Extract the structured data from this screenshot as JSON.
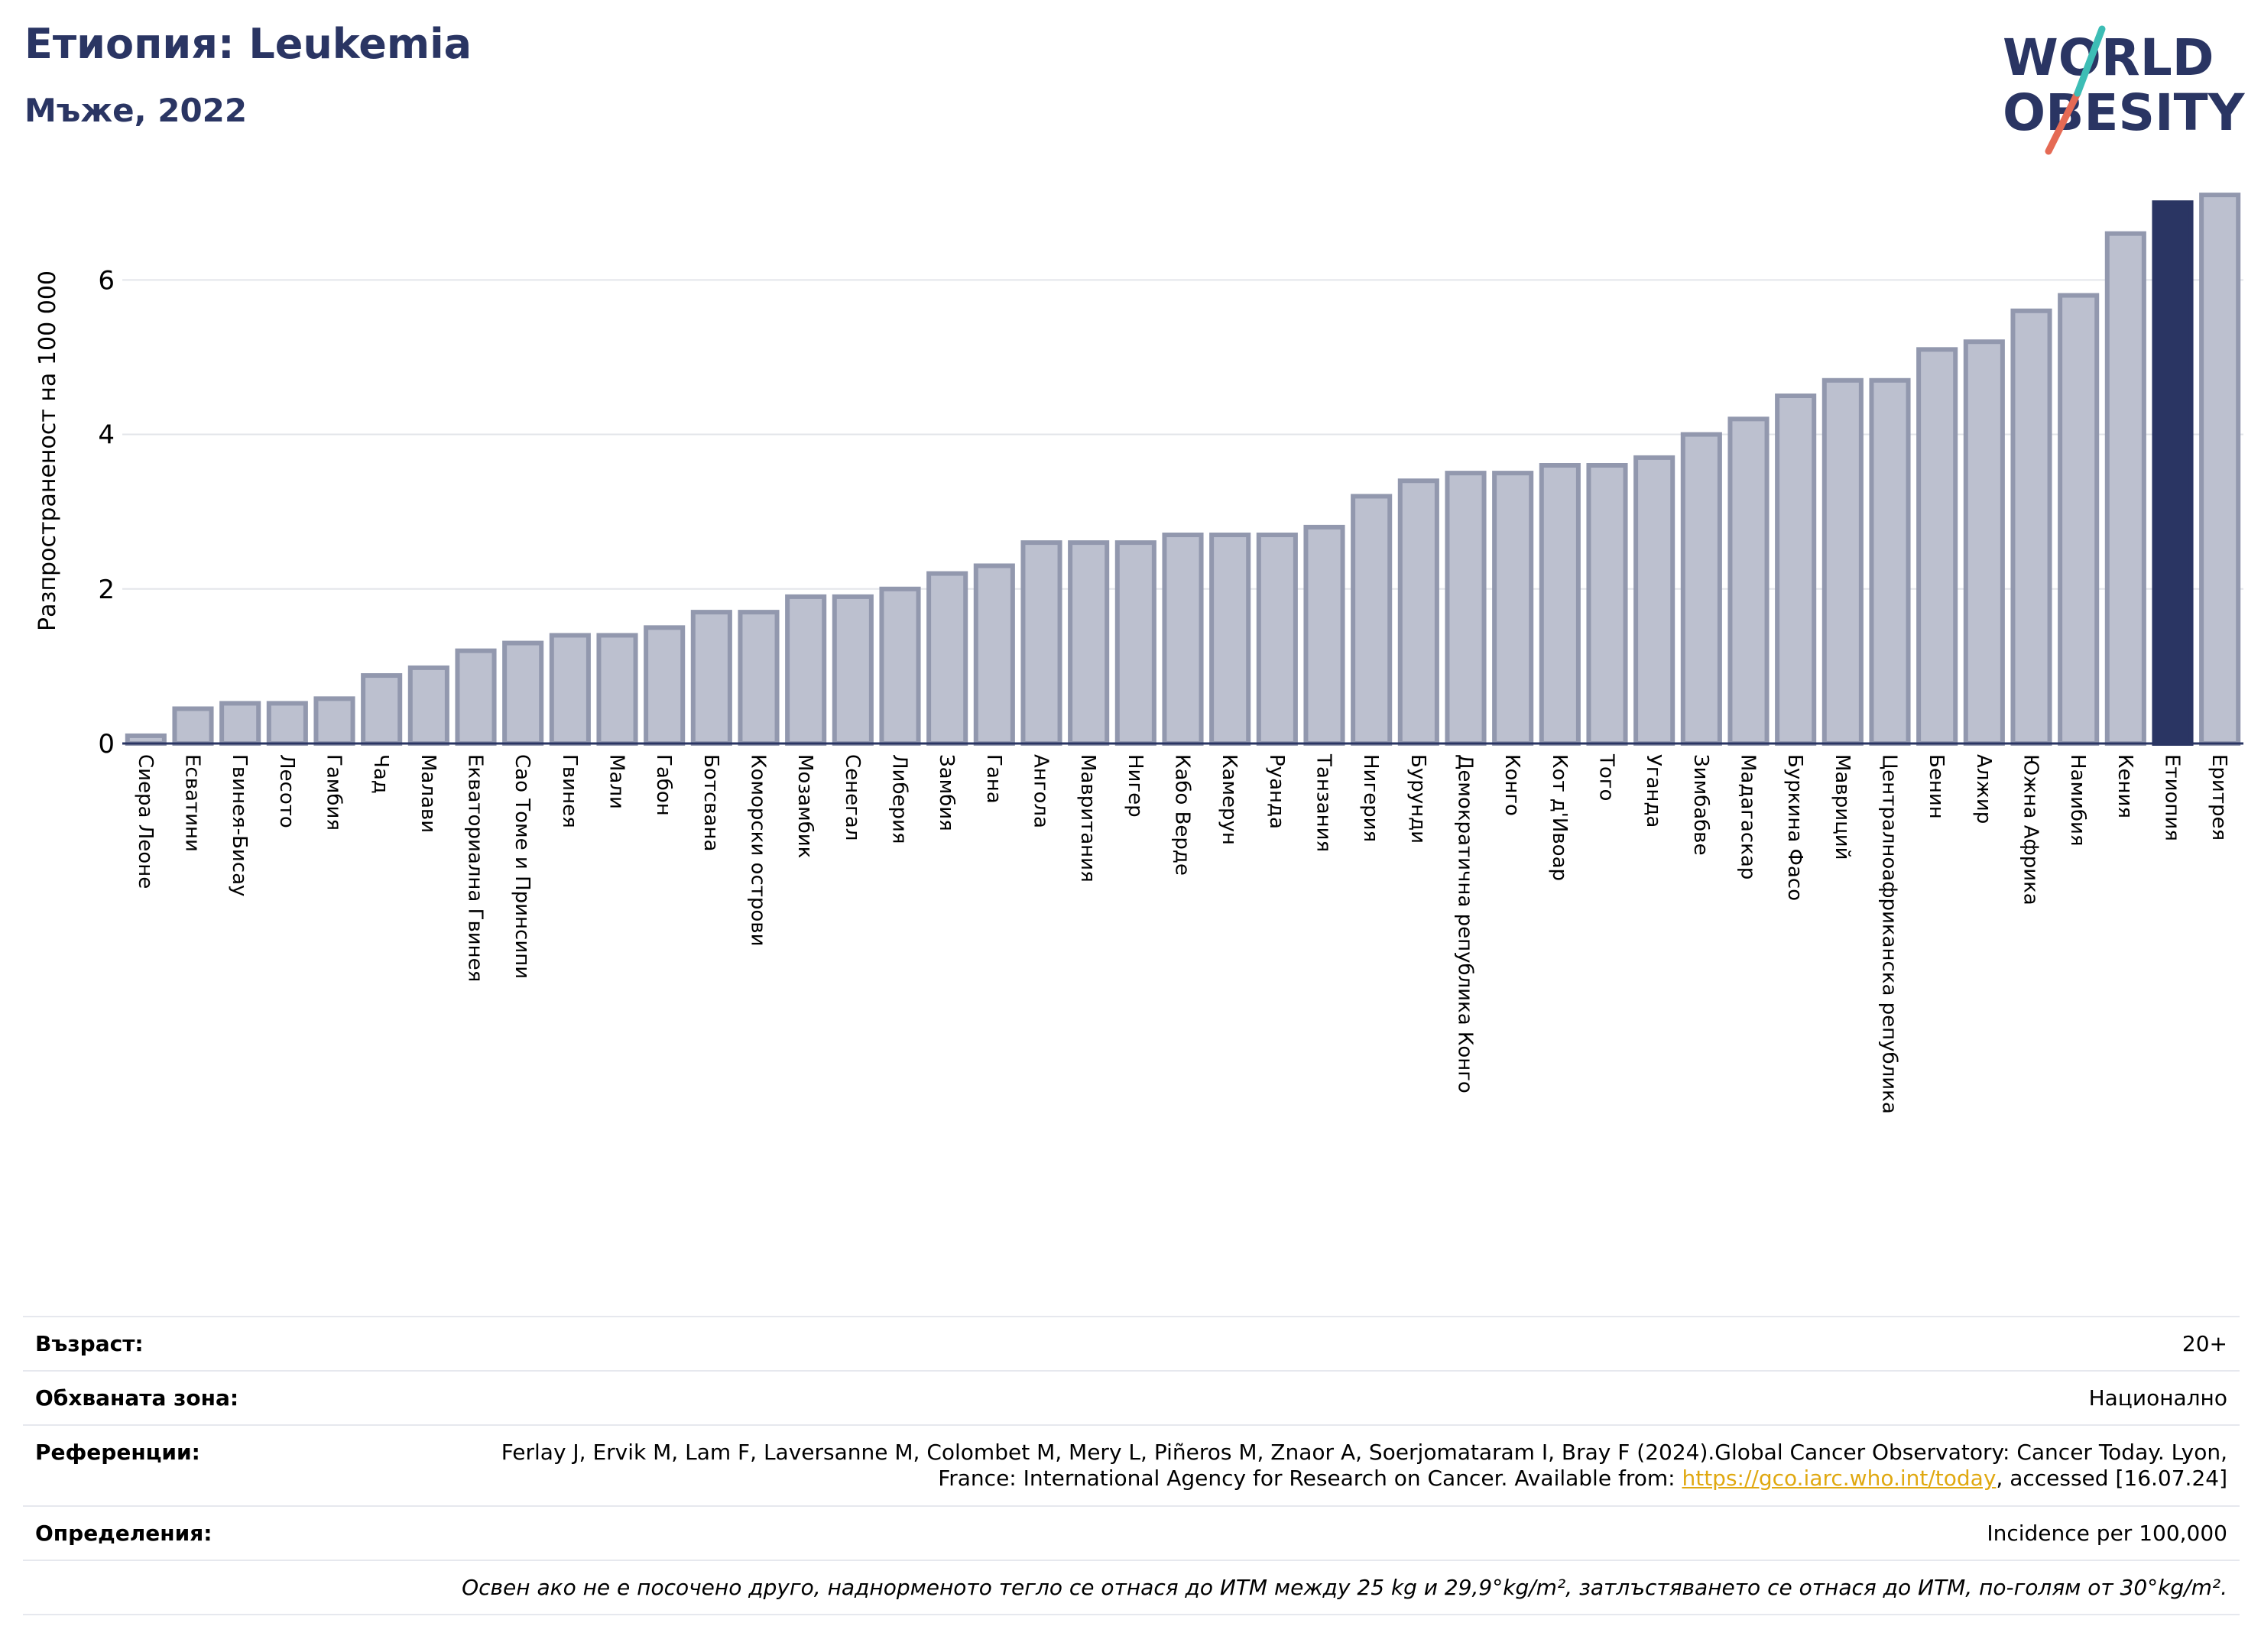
{
  "header": {
    "title": "Етиопия: Leukemia",
    "subtitle": "Мъже, 2022"
  },
  "logo": {
    "line1": "WORLD",
    "line2": "OBESITY"
  },
  "colors": {
    "bar": "#bcc0cf",
    "bar_edge": "#9298ae",
    "highlight": "#2a3563",
    "title": "#2a3563"
  },
  "chart_data": {
    "type": "bar",
    "ylabel": "Разпространеност  на 100 000",
    "ylim": [
      0,
      7.2
    ],
    "yticks": [
      0,
      2,
      4,
      6
    ],
    "grid": true,
    "highlight": "Етиопия",
    "categories": [
      "Сиера Леоне",
      "Есватини",
      "Гвинея-Бисау",
      "Лесото",
      "Гамбия",
      "Чад",
      "Малави",
      "Екваториална Гвинея",
      "Сао Томе и Принсипи",
      "Гвинея",
      "Мали",
      "Габон",
      "Ботсвана",
      "Коморски острови",
      "Мозамбик",
      "Сенегал",
      "Либерия",
      "Замбия",
      "Гана",
      "Ангола",
      "Мавритания",
      "Нигер",
      "Кабо Верде",
      "Камерун",
      "Руанда",
      "Танзания",
      "Нигерия",
      "Бурунди",
      "Демократична република Конго",
      "Конго",
      "Кот д'Ивоар",
      "Того",
      "Уганда",
      "Зимбабве",
      "Мадагаскар",
      "Буркина Фасо",
      "Мавриций",
      "Централноафриканска република",
      "Бенин",
      "Алжир",
      "Южна Африка",
      "Намибия",
      "Кения",
      "Етиопия",
      "Еритрея"
    ],
    "values": [
      0.1,
      0.45,
      0.52,
      0.52,
      0.58,
      0.88,
      0.98,
      1.2,
      1.3,
      1.4,
      1.4,
      1.5,
      1.7,
      1.7,
      1.9,
      1.9,
      2.0,
      2.2,
      2.3,
      2.6,
      2.6,
      2.6,
      2.7,
      2.7,
      2.7,
      2.8,
      3.2,
      3.4,
      3.5,
      3.5,
      3.6,
      3.6,
      3.7,
      4.0,
      4.2,
      4.5,
      4.7,
      4.7,
      5.1,
      5.2,
      5.6,
      5.8,
      6.6,
      7.0,
      7.1
    ]
  },
  "info": {
    "age_label": "Възраст:",
    "age_value": "20+",
    "area_label": "Обхваната зона:",
    "area_value": "Национално",
    "refs_label": "Референции:",
    "refs_text": "Ferlay J, Ervik M, Lam F, Laversanne M, Colombet M, Mery L, Piñeros M, Znaor A, Soerjomataram I, Bray F (2024).Global Cancer Observatory: Cancer Today. Lyon, France: International Agency for Research on Cancer. Available from: ",
    "refs_link": "https://gco.iarc.who.int/today",
    "refs_tail": ", accessed [16.07.24]",
    "def_label": "Определения:",
    "def_value": "Incidence per 100,000",
    "note": "Освен ако не е посочено друго, наднорменото тегло се отнася до ИТМ между 25 kg и 29,9°kg/m², затлъстяването се отнася до ИТМ, по-голям от 30°kg/m²."
  }
}
